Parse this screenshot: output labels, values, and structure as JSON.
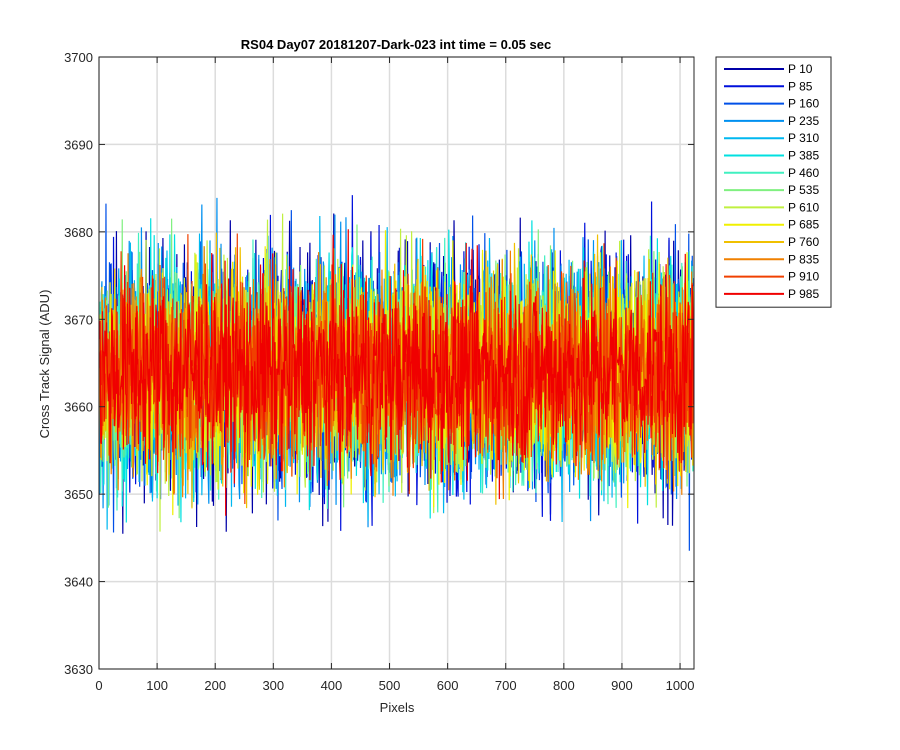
{
  "chart_data": {
    "type": "line",
    "title": "RS04 Day07 20181207-Dark-023 int time = 0.05 sec",
    "xlabel": "Pixels",
    "ylabel": "Cross Track Signal (ADU)",
    "xlim": [
      0,
      1024
    ],
    "ylim": [
      3630,
      3700
    ],
    "xticks": [
      0,
      100,
      200,
      300,
      400,
      500,
      600,
      700,
      800,
      900,
      1000
    ],
    "yticks": [
      3630,
      3640,
      3650,
      3660,
      3670,
      3680,
      3690,
      3700
    ],
    "grid": true,
    "legend_position": "outside-right",
    "noise_center": 3664,
    "noise_range": [
      3638,
      3693
    ],
    "series": [
      {
        "name": "P 10",
        "color": "#0000a8"
      },
      {
        "name": "P 85",
        "color": "#0010dc"
      },
      {
        "name": "P 160",
        "color": "#0050e8"
      },
      {
        "name": "P 235",
        "color": "#0090f0"
      },
      {
        "name": "P 310",
        "color": "#00b8f0"
      },
      {
        "name": "P 385",
        "color": "#00e0e0"
      },
      {
        "name": "P 460",
        "color": "#40f0c0"
      },
      {
        "name": "P 535",
        "color": "#80f080"
      },
      {
        "name": "P 610",
        "color": "#c0f040"
      },
      {
        "name": "P 685",
        "color": "#f0f000"
      },
      {
        "name": "P 760",
        "color": "#f0c000"
      },
      {
        "name": "P 835",
        "color": "#f08000"
      },
      {
        "name": "P 910",
        "color": "#f04000"
      },
      {
        "name": "P 985",
        "color": "#f00000"
      }
    ]
  }
}
